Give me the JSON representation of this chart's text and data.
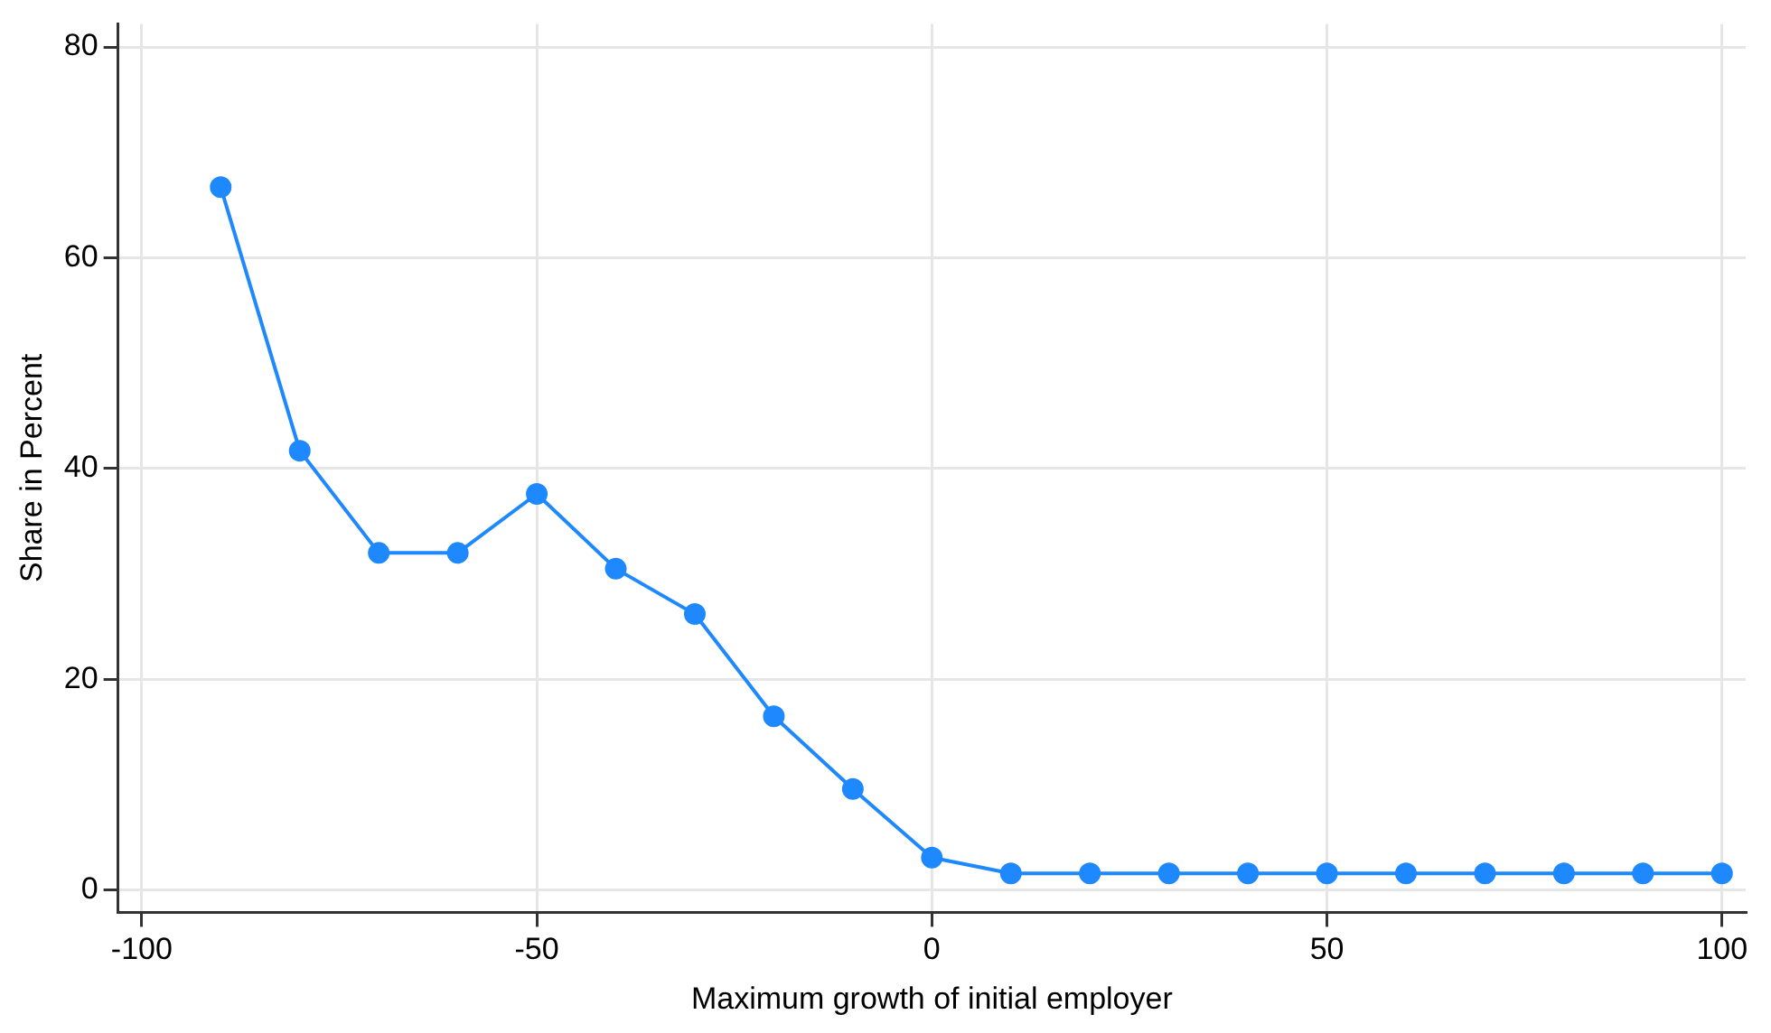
{
  "chart_data": {
    "type": "line",
    "xlabel": "Maximum growth of initial employer",
    "ylabel": "Share in Percent",
    "x": [
      -90,
      -80,
      -70,
      -60,
      -50,
      -40,
      -30,
      -20,
      -10,
      0,
      10,
      20,
      30,
      40,
      50,
      60,
      70,
      80,
      90,
      100
    ],
    "series": [
      {
        "color": "#1e88ff",
        "values": [
          66.7,
          41.7,
          32.0,
          32.0,
          37.6,
          30.5,
          26.2,
          16.5,
          9.6,
          3.1,
          1.6,
          1.6,
          1.6,
          1.6,
          1.6,
          1.6,
          1.6,
          1.6,
          1.6,
          1.6
        ]
      }
    ],
    "xlim": [
      -103,
      103
    ],
    "xticks": [
      -100,
      -50,
      0,
      50,
      100
    ],
    "ylim": [
      -2.1,
      82.2
    ],
    "yticks": [
      0,
      20,
      40,
      60,
      80
    ],
    "grid": true,
    "marker": "circle",
    "line_style": "solid",
    "legend": false
  }
}
